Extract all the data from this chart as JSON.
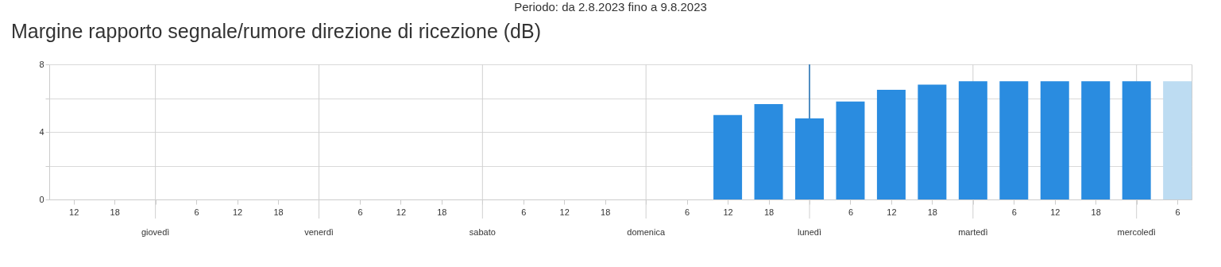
{
  "chart_data": {
    "type": "bar",
    "title": "Margine rapporto segnale/rumore direzione di ricezione (dB)",
    "subtitle": "Periodo: da 2.8.2023 fino a 9.8.2023",
    "x": [
      "2023-08-06T12:00",
      "2023-08-06T18:00",
      "2023-08-07T00:00",
      "2023-08-07T06:00",
      "2023-08-07T12:00",
      "2023-08-07T18:00",
      "2023-08-08T00:00",
      "2023-08-08T06:00",
      "2023-08-08T12:00",
      "2023-08-08T18:00",
      "2023-08-09T00:00",
      "2023-08-09T06:00"
    ],
    "values": [
      5.0,
      5.65,
      4.8,
      5.8,
      6.5,
      6.8,
      7.0,
      7.0,
      7.0,
      7.0,
      7.0,
      7.0
    ],
    "colors": [
      "#2a8ce0",
      "#2a8ce0",
      "#2a8ce0",
      "#2a8ce0",
      "#2a8ce0",
      "#2a8ce0",
      "#2a8ce0",
      "#2a8ce0",
      "#2a8ce0",
      "#2a8ce0",
      "#2a8ce0",
      "#bddcf2"
    ],
    "xlim": [
      "2023-08-02T09:00",
      "2023-08-09T07:30"
    ],
    "xticks": [
      {
        "value": "2023-08-02T12:00",
        "label": "12"
      },
      {
        "value": "2023-08-02T18:00",
        "label": "18"
      },
      {
        "value": "2023-08-03T00:00",
        "label": null
      },
      {
        "value": "2023-08-03T06:00",
        "label": "6"
      },
      {
        "value": "2023-08-03T12:00",
        "label": "12"
      },
      {
        "value": "2023-08-03T18:00",
        "label": "18"
      },
      {
        "value": "2023-08-04T00:00",
        "label": null
      },
      {
        "value": "2023-08-04T06:00",
        "label": "6"
      },
      {
        "value": "2023-08-04T12:00",
        "label": "12"
      },
      {
        "value": "2023-08-04T18:00",
        "label": "18"
      },
      {
        "value": "2023-08-05T00:00",
        "label": null
      },
      {
        "value": "2023-08-05T06:00",
        "label": "6"
      },
      {
        "value": "2023-08-05T12:00",
        "label": "12"
      },
      {
        "value": "2023-08-05T18:00",
        "label": "18"
      },
      {
        "value": "2023-08-06T00:00",
        "label": null
      },
      {
        "value": "2023-08-06T06:00",
        "label": "6"
      },
      {
        "value": "2023-08-06T12:00",
        "label": "12"
      },
      {
        "value": "2023-08-06T18:00",
        "label": "18"
      },
      {
        "value": "2023-08-07T00:00",
        "label": null
      },
      {
        "value": "2023-08-07T06:00",
        "label": "6"
      },
      {
        "value": "2023-08-07T12:00",
        "label": "12"
      },
      {
        "value": "2023-08-07T18:00",
        "label": "18"
      },
      {
        "value": "2023-08-08T00:00",
        "label": null
      },
      {
        "value": "2023-08-08T06:00",
        "label": "6"
      },
      {
        "value": "2023-08-08T12:00",
        "label": "12"
      },
      {
        "value": "2023-08-08T18:00",
        "label": "18"
      },
      {
        "value": "2023-08-09T00:00",
        "label": null
      },
      {
        "value": "2023-08-09T06:00",
        "label": "6"
      }
    ],
    "ylim": [
      0,
      8
    ],
    "yticks": [
      0,
      {
        "value": 2,
        "label": null
      },
      4,
      {
        "value": 6,
        "label": null
      },
      8
    ],
    "annotations": [
      "giovedì",
      "venerdì",
      "sabato",
      "domenica",
      "lunedì",
      "martedì",
      "mercoledì"
    ],
    "grid": true,
    "ref_lines": [
      {
        "axis": "x",
        "value": "2023-08-07T00:00",
        "color": "#1f6fb5"
      }
    ]
  }
}
